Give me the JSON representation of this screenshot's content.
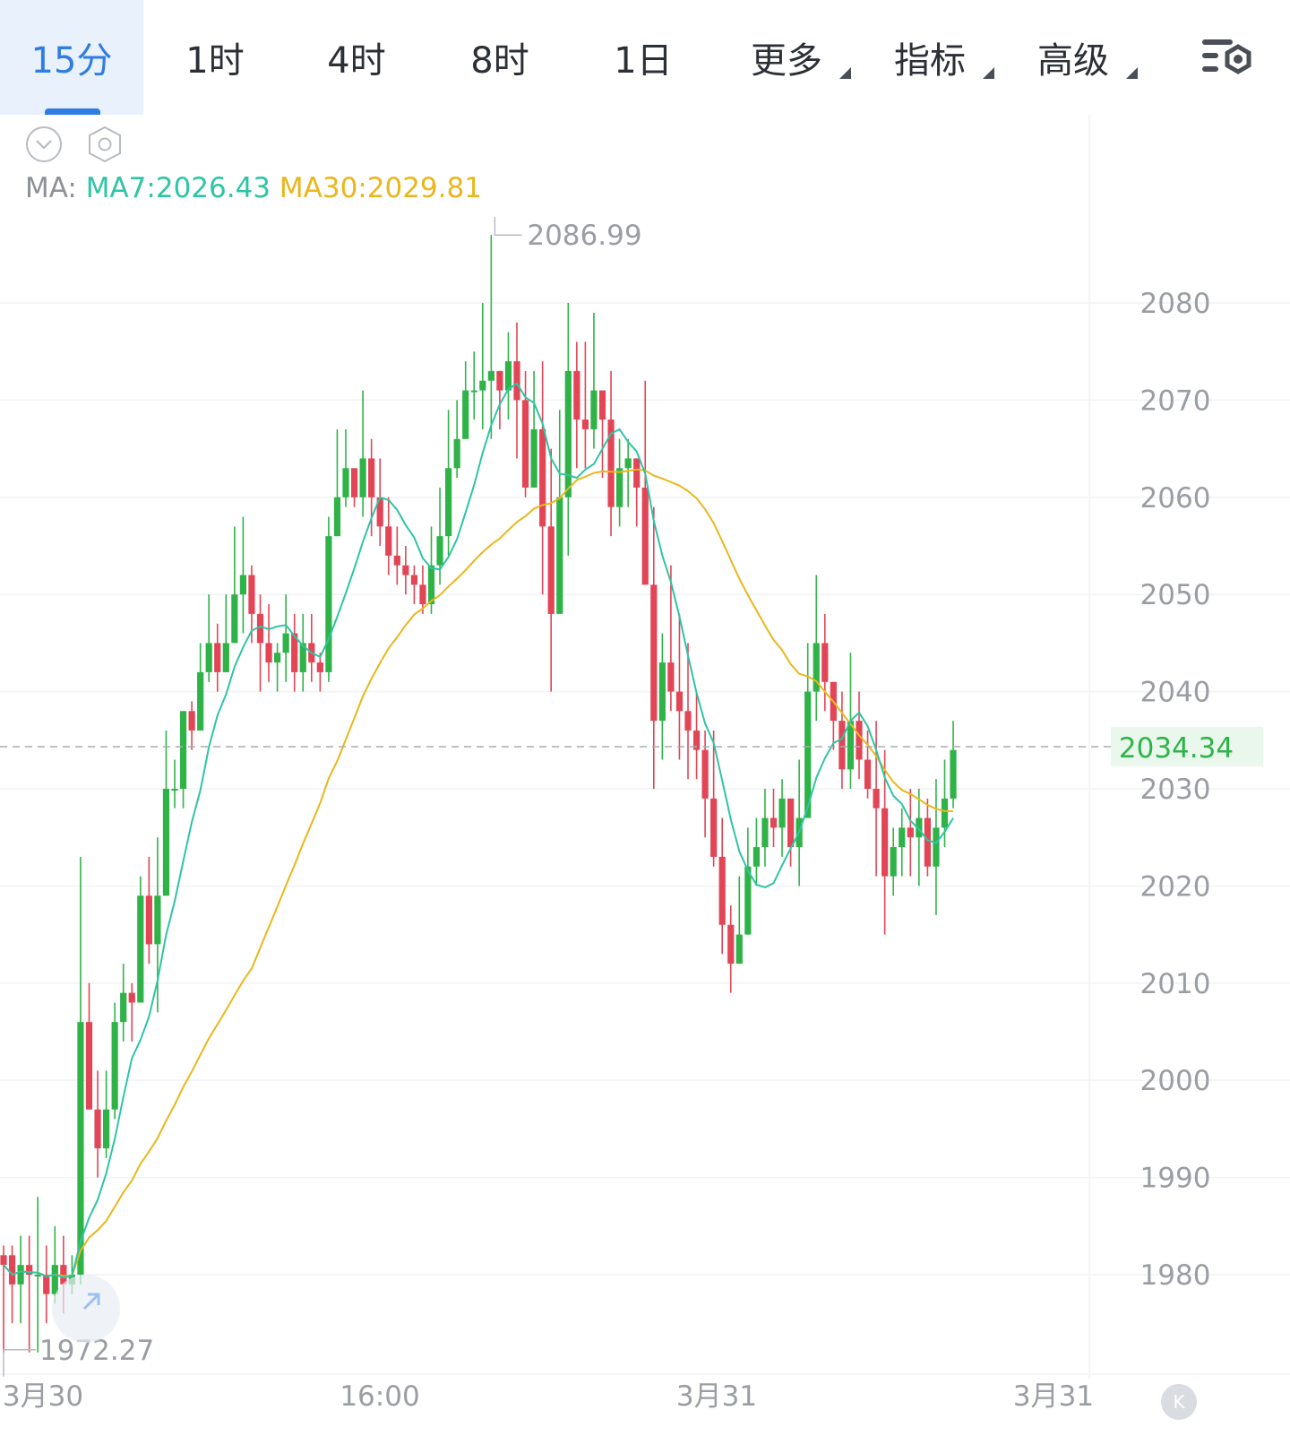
{
  "tabs": [
    {
      "label": "15分",
      "active": true
    },
    {
      "label": "1时"
    },
    {
      "label": "4时"
    },
    {
      "label": "8时"
    },
    {
      "label": "1日"
    },
    {
      "label": "更多",
      "dropdown": true
    },
    {
      "label": "指标",
      "dropdown": true
    },
    {
      "label": "高级",
      "dropdown": true
    }
  ],
  "icons": {
    "settings": "chart-settings-icon",
    "collapse": "chevron-down-icon",
    "gear": "hexagon-gear-icon",
    "fab": "expand-arrow-icon",
    "badge": "k-badge-icon"
  },
  "indicators": {
    "prefix": "MA:",
    "ma7": "MA7:2026.43",
    "ma30": "MA30:2029.81"
  },
  "badge_letter": "K",
  "colors": {
    "up": "#2fb349",
    "down": "#e24556",
    "ma7": "#2ec4a6",
    "ma30": "#e9b71c",
    "accent": "#2f7de1",
    "last_price_bg": "#e9f7ec",
    "last_price_text": "#2fb349"
  },
  "chart_data": {
    "type": "candlestick",
    "interval": "15分",
    "y_range": [
      1969,
      2090
    ],
    "y_ticks": [
      "2080",
      "2070",
      "2060",
      "2050",
      "2040",
      "2030",
      "2020",
      "2010",
      "2000",
      "1990",
      "1980"
    ],
    "x_ticks": [
      "3月30",
      "16:00",
      "3月31",
      "3月31"
    ],
    "last_price": "2034.34",
    "high_label": "2086.99",
    "low_label": "1972.27",
    "ohlc": [
      [
        1982,
        1981,
        1983,
        1972
      ],
      [
        1982,
        1979,
        1983,
        1975
      ],
      [
        1979,
        1981,
        1984,
        1975
      ],
      [
        1981,
        1980,
        1984,
        1972
      ],
      [
        1980,
        1980,
        1988,
        1972
      ],
      [
        1980,
        1978,
        1983,
        1975
      ],
      [
        1978,
        1981,
        1985,
        1977
      ],
      [
        1981,
        1979,
        1984,
        1976
      ],
      [
        1979,
        1980,
        1982,
        1978
      ],
      [
        1980,
        2006,
        2023,
        1979
      ],
      [
        2006,
        1997,
        2010,
        1997
      ],
      [
        1997,
        1993,
        2001,
        1990
      ],
      [
        1993,
        1997,
        2001,
        1992
      ],
      [
        1997,
        2006,
        2008,
        1996
      ],
      [
        2006,
        2009,
        2012,
        2004
      ],
      [
        2009,
        2008,
        2010,
        2004
      ],
      [
        2008,
        2019,
        2021,
        2011
      ],
      [
        2019,
        2014,
        2023,
        2012
      ],
      [
        2014,
        2019,
        2025,
        2007
      ],
      [
        2019,
        2030,
        2036,
        2019
      ],
      [
        2030,
        2030,
        2033,
        2028
      ],
      [
        2030,
        2038,
        2038,
        2028
      ],
      [
        2038,
        2036,
        2039,
        2034
      ],
      [
        2036,
        2042,
        2045,
        2037
      ],
      [
        2042,
        2045,
        2050,
        2041
      ],
      [
        2045,
        2042,
        2047,
        2040
      ],
      [
        2042,
        2045,
        2050,
        2042
      ],
      [
        2045,
        2050,
        2057,
        2045
      ],
      [
        2050,
        2052,
        2058,
        2046
      ],
      [
        2052,
        2048,
        2053,
        2045
      ],
      [
        2048,
        2045,
        2050,
        2040
      ],
      [
        2045,
        2043,
        2049,
        2041
      ],
      [
        2043,
        2044,
        2045,
        2040
      ],
      [
        2044,
        2046,
        2050,
        2041
      ],
      [
        2046,
        2042,
        2048,
        2040
      ],
      [
        2042,
        2045,
        2048,
        2040
      ],
      [
        2045,
        2043,
        2048,
        2041
      ],
      [
        2043,
        2042,
        2044,
        2040
      ],
      [
        2042,
        2056,
        2058,
        2041
      ],
      [
        2056,
        2060,
        2067,
        2056
      ],
      [
        2060,
        2063,
        2067,
        2059
      ],
      [
        2063,
        2060,
        2062,
        2059
      ],
      [
        2060,
        2064,
        2071,
        2058
      ],
      [
        2064,
        2060,
        2066,
        2056
      ],
      [
        2060,
        2057,
        2064,
        2055
      ],
      [
        2057,
        2054,
        2060,
        2052
      ],
      [
        2054,
        2053,
        2057,
        2051
      ],
      [
        2053,
        2052,
        2055,
        2050
      ],
      [
        2052,
        2051,
        2053,
        2049
      ],
      [
        2051,
        2049,
        2053,
        2048
      ],
      [
        2049,
        2053,
        2057,
        2048
      ],
      [
        2053,
        2056,
        2061,
        2051
      ],
      [
        2056,
        2063,
        2069,
        2054
      ],
      [
        2063,
        2066,
        2070,
        2062
      ],
      [
        2066,
        2071,
        2074,
        2066
      ],
      [
        2071,
        2071,
        2075,
        2068
      ],
      [
        2071,
        2072,
        2080,
        2067
      ],
      [
        2072,
        2073,
        2087,
        2066
      ],
      [
        2073,
        2071,
        2073,
        2067
      ],
      [
        2071,
        2074,
        2077,
        2068
      ],
      [
        2074,
        2070,
        2078,
        2064
      ],
      [
        2070,
        2061,
        2073,
        2060
      ],
      [
        2061,
        2067,
        2073,
        2061
      ],
      [
        2067,
        2057,
        2074,
        2050
      ],
      [
        2057,
        2048,
        2065,
        2040
      ],
      [
        2048,
        2060,
        2069,
        2051
      ],
      [
        2060,
        2073,
        2080,
        2054
      ],
      [
        2073,
        2068,
        2076,
        2063
      ],
      [
        2068,
        2067,
        2076,
        2063
      ],
      [
        2067,
        2071,
        2079,
        2065
      ],
      [
        2071,
        2068,
        2071,
        2062
      ],
      [
        2068,
        2059,
        2073,
        2056
      ],
      [
        2059,
        2063,
        2066,
        2057
      ],
      [
        2063,
        2064,
        2066,
        2059
      ],
      [
        2064,
        2061,
        2064,
        2057
      ],
      [
        2061,
        2051,
        2072,
        2055
      ],
      [
        2051,
        2037,
        2059,
        2030
      ],
      [
        2037,
        2043,
        2046,
        2033
      ],
      [
        2043,
        2040,
        2053,
        2038
      ],
      [
        2040,
        2038,
        2048,
        2033
      ],
      [
        2038,
        2036,
        2045,
        2031
      ],
      [
        2036,
        2034,
        2040,
        2031
      ],
      [
        2034,
        2029,
        2036,
        2025
      ],
      [
        2029,
        2023,
        2036,
        2022
      ],
      [
        2023,
        2016,
        2027,
        2013
      ],
      [
        2016,
        2012,
        2018,
        2009
      ],
      [
        2012,
        2015,
        2021,
        2012
      ],
      [
        2015,
        2022,
        2026,
        2015
      ],
      [
        2022,
        2024,
        2027,
        2020
      ],
      [
        2024,
        2027,
        2030,
        2022
      ],
      [
        2027,
        2026,
        2030,
        2024
      ],
      [
        2026,
        2029,
        2031,
        2023
      ],
      [
        2029,
        2024,
        2027,
        2022
      ],
      [
        2024,
        2027,
        2033,
        2020
      ],
      [
        2027,
        2040,
        2045,
        2027
      ],
      [
        2040,
        2045,
        2052,
        2037
      ],
      [
        2045,
        2041,
        2048,
        2038
      ],
      [
        2041,
        2037,
        2041,
        2034
      ],
      [
        2037,
        2032,
        2040,
        2030
      ],
      [
        2032,
        2037,
        2044,
        2030
      ],
      [
        2037,
        2033,
        2040,
        2031
      ],
      [
        2033,
        2030,
        2036,
        2029
      ],
      [
        2030,
        2028,
        2037,
        2021
      ],
      [
        2028,
        2021,
        2034,
        2015
      ],
      [
        2021,
        2024,
        2026,
        2019
      ],
      [
        2024,
        2026,
        2028,
        2021
      ],
      [
        2026,
        2025,
        2030,
        2021
      ],
      [
        2025,
        2027,
        2030,
        2020
      ],
      [
        2027,
        2022,
        2029,
        2021
      ],
      [
        2022,
        2026,
        2031,
        2017
      ],
      [
        2026,
        2029,
        2033,
        2024
      ],
      [
        2029,
        2034,
        2037,
        2028
      ]
    ]
  }
}
